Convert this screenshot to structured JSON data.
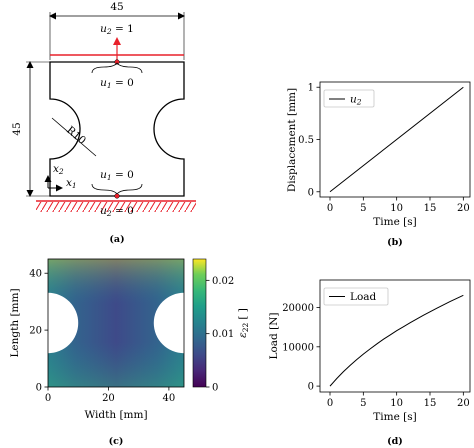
{
  "panel_a": {
    "caption": "(a)",
    "width_dim": "45",
    "height_dim": "45",
    "top_bc": "u",
    "top_bc_sub": "2",
    "top_bc_rhs": " = 1",
    "top_u1": "u",
    "top_u1_sub": "1",
    "top_u1_rhs": " = 0",
    "radius": "R10",
    "x2": "x",
    "x2_sub": "2",
    "x1": "x",
    "x1_sub": "1",
    "bot_u1": "u",
    "bot_u1_sub": "1",
    "bot_u1_rhs": " = 0",
    "bot_bc": "u",
    "bot_bc_sub": "2",
    "bot_bc_rhs": " = 0",
    "colors": {
      "load": "#e8202a",
      "specimen": "#000000"
    }
  },
  "panel_b": {
    "caption": "(b)",
    "chart_data": {
      "type": "line",
      "xlabel": "Time [s]",
      "ylabel": "Displacement [mm]",
      "xlim": [
        -1.5,
        21
      ],
      "ylim": [
        -0.05,
        1.05
      ],
      "xticks": [
        0,
        5,
        10,
        15,
        20
      ],
      "yticks": [
        0,
        0.5,
        1
      ],
      "ytick_labels": [
        "0",
        "0.5",
        "1"
      ],
      "legend_position": "top-left",
      "series": [
        {
          "name": "u",
          "name_sub": "2",
          "x": [
            0,
            20
          ],
          "y": [
            0,
            1
          ],
          "color": "#000000"
        }
      ]
    }
  },
  "panel_c": {
    "caption": "(c)",
    "chart_data": {
      "type": "heatmap",
      "xlabel": "Width [mm]",
      "ylabel": "Length [mm]",
      "xlim": [
        0,
        45
      ],
      "ylim": [
        0,
        45
      ],
      "xticks": [
        0,
        20,
        40
      ],
      "yticks": [
        0,
        20,
        40
      ],
      "colorbar_label": "ε",
      "colorbar_label_sub": "22",
      "colorbar_unit": "[ ]",
      "colorbar_range": [
        0,
        0.024
      ],
      "colorbar_ticks": [
        0,
        0.01,
        0.02
      ],
      "colorbar_tick_labels": [
        "0",
        "0.01",
        "0.02"
      ],
      "colormap": "viridis",
      "notches": [
        {
          "cx": 0,
          "cy": 22.5,
          "r": 10
        },
        {
          "cx": 45,
          "cy": 22.5,
          "r": 10
        }
      ]
    }
  },
  "panel_d": {
    "caption": "(d)",
    "chart_data": {
      "type": "line",
      "xlabel": "Time [s]",
      "ylabel": "Load [N]",
      "xlim": [
        -1.5,
        21
      ],
      "ylim": [
        -1500,
        27000
      ],
      "xticks": [
        0,
        5,
        10,
        15,
        20
      ],
      "yticks": [
        0,
        10000,
        20000
      ],
      "ytick_labels": [
        "0",
        "10000",
        "20000"
      ],
      "legend_position": "top-left",
      "series": [
        {
          "name": "Load",
          "x": [
            0,
            1,
            2,
            3,
            4,
            5,
            6,
            7,
            8,
            9,
            10,
            11,
            12,
            13,
            14,
            15,
            16,
            17,
            18,
            19,
            20
          ],
          "y": [
            0,
            1900,
            3650,
            5250,
            6750,
            8150,
            9450,
            10700,
            11900,
            13000,
            14100,
            15100,
            16100,
            17050,
            18000,
            18900,
            19800,
            20650,
            21500,
            22300,
            23100
          ],
          "color": "#000000"
        }
      ]
    }
  }
}
